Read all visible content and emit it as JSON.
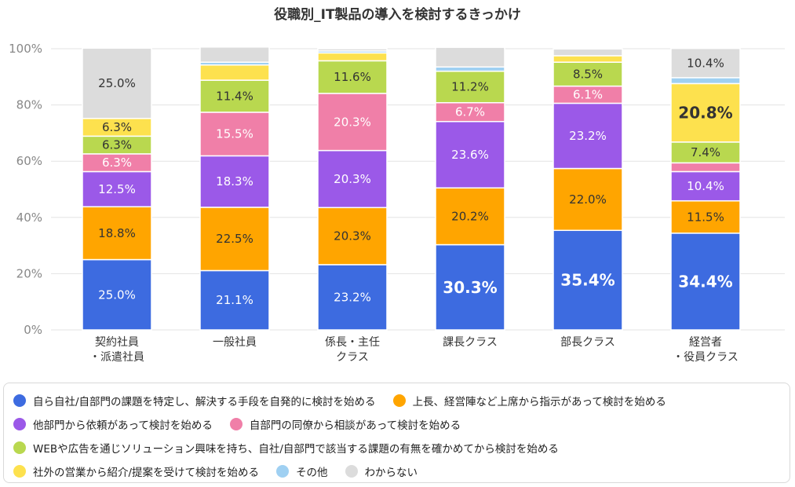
{
  "chart_data": {
    "type": "bar",
    "stacked": true,
    "title": "役職別_IT製品の導入を検討するきっかけ",
    "ylim": [
      0,
      100
    ],
    "yticks": [
      "0%",
      "20%",
      "40%",
      "60%",
      "80%",
      "100%"
    ],
    "grid": true,
    "legend_position": "bottom",
    "categories": [
      [
        "契約社員",
        "・派遣社員"
      ],
      [
        "一般社員"
      ],
      [
        "係長・主任",
        "クラス"
      ],
      [
        "課長クラス"
      ],
      [
        "部長クラス"
      ],
      [
        "経営者",
        "・役員クラス"
      ]
    ],
    "series": [
      {
        "name": "自ら自社/自部門の課題を特定し、解決する手段を自発的に検討を始める",
        "color": "#3d6be0",
        "label_color": "#ffffff",
        "values": [
          25.0,
          21.1,
          23.2,
          30.3,
          35.4,
          34.4
        ]
      },
      {
        "name": "上長、経営陣など上席から指示があって検討を始める",
        "color": "#ffa500",
        "label_color": "#333333",
        "values": [
          18.8,
          22.5,
          20.3,
          20.2,
          22.0,
          11.5
        ]
      },
      {
        "name": "他部門から依頼があって検討を始める",
        "color": "#9b59e8",
        "label_color": "#ffffff",
        "values": [
          12.5,
          18.3,
          20.3,
          23.6,
          23.2,
          10.4
        ]
      },
      {
        "name": "自部門の同僚から相談があって検討を始める",
        "color": "#f07fa8",
        "label_color": "#ffffff",
        "values": [
          6.3,
          15.5,
          20.3,
          6.7,
          6.1,
          3.1
        ]
      },
      {
        "name": "WEBや広告を通じソリューション興味を持ち、自社/自部門で該当する課題の有無を確かめてから検討を始める",
        "color": "#b9d84f",
        "label_color": "#333333",
        "values": [
          6.3,
          11.4,
          11.6,
          11.2,
          8.5,
          7.4
        ]
      },
      {
        "name": "社外の営業から紹介/提案を受けて検討を始める",
        "color": "#fde14e",
        "label_color": "#333333",
        "values": [
          6.3,
          5.4,
          2.8,
          0.0,
          2.3,
          20.8
        ]
      },
      {
        "name": "その他",
        "color": "#9fd0f2",
        "label_color": "#333333",
        "values": [
          0.0,
          1.0,
          0.7,
          1.5,
          0.0,
          2.1
        ]
      },
      {
        "name": "わからない",
        "color": "#dcdcdc",
        "label_color": "#333333",
        "values": [
          25.0,
          5.4,
          0.8,
          7.0,
          2.4,
          10.4
        ]
      }
    ],
    "data_labels": [
      [
        "25.0%",
        "18.8%",
        "12.5%",
        "6.3%",
        "6.3%",
        "6.3%",
        "",
        "25.0%"
      ],
      [
        "21.1%",
        "22.5%",
        "18.3%",
        "15.5%",
        "11.4%",
        "",
        "",
        ""
      ],
      [
        "23.2%",
        "20.3%",
        "20.3%",
        "20.3%",
        "11.6%",
        "",
        "",
        ""
      ],
      [
        "30.3%",
        "20.2%",
        "23.6%",
        "6.7%",
        "11.2%",
        "",
        "",
        ""
      ],
      [
        "35.4%",
        "22.0%",
        "23.2%",
        "6.1%",
        "8.5%",
        "",
        "",
        ""
      ],
      [
        "34.4%",
        "11.5%",
        "10.4%",
        "",
        "7.4%",
        "20.8%",
        "",
        "10.4%"
      ]
    ],
    "bold_labels": [
      [
        false,
        false,
        false,
        false,
        false,
        false,
        false,
        false
      ],
      [
        false,
        false,
        false,
        false,
        false,
        false,
        false,
        false
      ],
      [
        false,
        false,
        false,
        false,
        false,
        false,
        false,
        false
      ],
      [
        true,
        false,
        false,
        false,
        false,
        false,
        false,
        false
      ],
      [
        true,
        false,
        false,
        false,
        false,
        false,
        false,
        false
      ],
      [
        true,
        false,
        false,
        false,
        false,
        true,
        false,
        false
      ]
    ]
  },
  "legend_rows": [
    [
      0,
      1
    ],
    [
      2,
      3
    ],
    [
      4
    ],
    [
      5,
      6,
      7
    ]
  ]
}
